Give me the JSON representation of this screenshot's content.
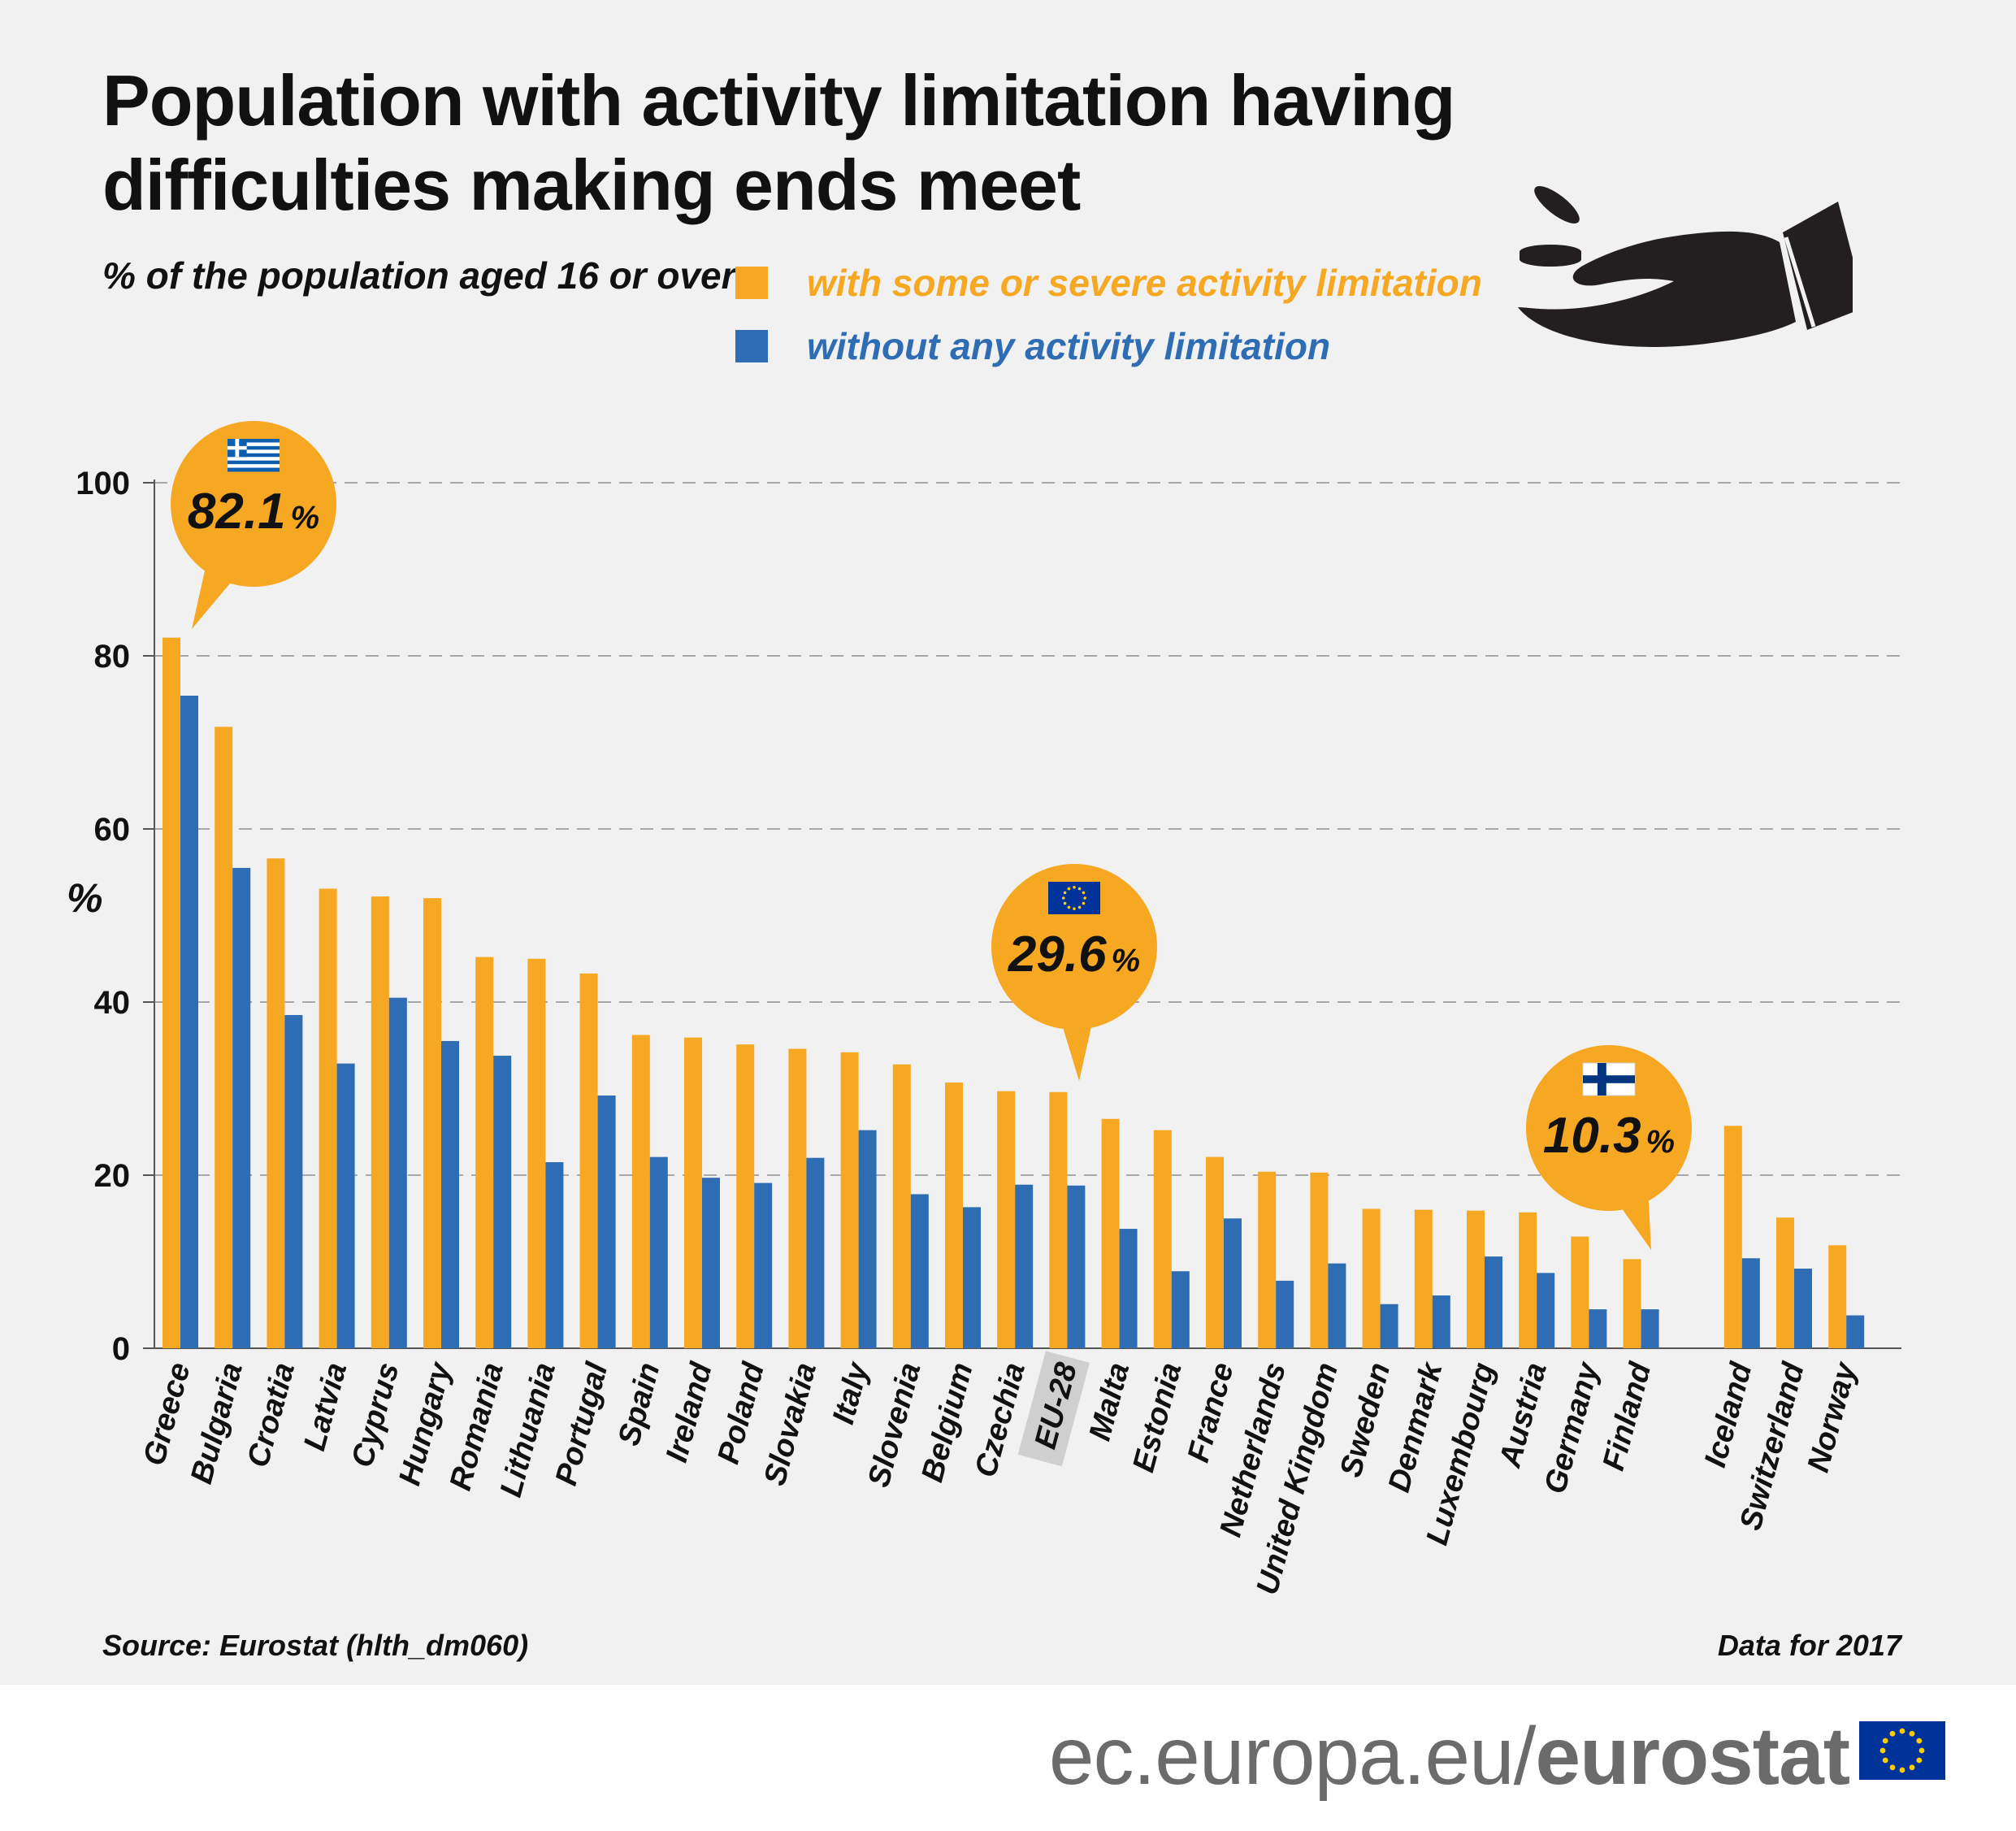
{
  "title": "Population with activity limitation having difficulties making ends meet",
  "subtitle": "% of the population aged 16 or over",
  "legend": [
    {
      "label": "with some or severe activity limitation",
      "color": "#f7a823"
    },
    {
      "label": "without any activity limitation",
      "color": "#2e6db4"
    }
  ],
  "chart_data": {
    "type": "bar",
    "title": "Population with activity limitation having difficulties making ends meet",
    "subtitle": "% of the population aged 16 or over",
    "ylabel": "%",
    "xlabel": "",
    "ylim": [
      0,
      100
    ],
    "yticks": [
      0,
      20,
      40,
      60,
      80,
      100
    ],
    "grid": "horizontal dashed",
    "legend_position": "top",
    "categories": [
      "Greece",
      "Bulgaria",
      "Croatia",
      "Latvia",
      "Cyprus",
      "Hungary",
      "Romania",
      "Lithuania",
      "Portugal",
      "Spain",
      "Ireland",
      "Poland",
      "Slovakia",
      "Italy",
      "Slovenia",
      "Belgium",
      "Czechia",
      "EU-28",
      "Malta",
      "Estonia",
      "France",
      "Netherlands",
      "United Kingdom",
      "Sweden",
      "Denmark",
      "Luxembourg",
      "Austria",
      "Germany",
      "Finland",
      "Iceland",
      "Switzerland",
      "Norway"
    ],
    "highlight_category": "EU-28",
    "series": [
      {
        "name": "with some or severe activity limitation",
        "color": "#f7a823",
        "values": [
          82.1,
          71.8,
          56.6,
          53.1,
          52.2,
          52.0,
          45.2,
          45.0,
          43.3,
          36.2,
          35.9,
          35.1,
          34.6,
          34.2,
          32.8,
          30.7,
          29.7,
          29.6,
          26.5,
          25.2,
          22.1,
          20.4,
          20.3,
          16.1,
          16.0,
          15.9,
          15.7,
          12.9,
          10.3,
          25.7,
          15.1,
          11.9
        ]
      },
      {
        "name": "without any activity limitation",
        "color": "#2e6db4",
        "values": [
          75.4,
          55.5,
          38.5,
          32.9,
          40.5,
          35.5,
          33.8,
          21.5,
          29.2,
          22.1,
          19.7,
          19.1,
          22.0,
          25.2,
          17.8,
          16.3,
          18.9,
          18.8,
          13.8,
          8.9,
          15.0,
          7.8,
          9.8,
          5.1,
          6.1,
          10.6,
          8.7,
          4.5,
          4.5,
          10.4,
          9.2,
          3.8
        ]
      }
    ],
    "annotations": [
      {
        "category": "Greece",
        "value": "82.1",
        "unit": "%",
        "flag": "greece-flag"
      },
      {
        "category": "EU-28",
        "value": "29.6",
        "unit": "%",
        "flag": "eu-flag"
      },
      {
        "category": "Finland",
        "value": "10.3",
        "unit": "%",
        "flag": "finland-flag"
      }
    ]
  },
  "source": "Source: Eurostat (hlth_dm060)",
  "data_year": "Data for 2017",
  "footer": {
    "url_prefix": "ec.europa.eu/",
    "url_brand": "eurostat"
  },
  "icons": {
    "hand": "hand-with-coins-icon",
    "footer_flag": "eu-flag-icon"
  }
}
